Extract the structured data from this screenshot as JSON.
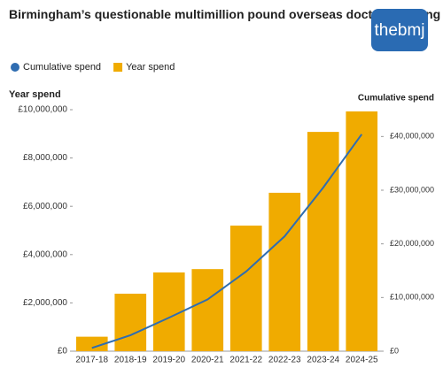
{
  "logo": "thebmj",
  "chart_data": {
    "type": "bar",
    "title": "Birmingham’s questionable multimillion pound overseas doctors training scheme",
    "y_label": "Year spend",
    "y2_label": "Cumulative spend",
    "categories": [
      "2017-18",
      "2018-19",
      "2019-20",
      "2020-21",
      "2021-22",
      "2022-23",
      "2023-24",
      "2024-25"
    ],
    "series": [
      {
        "name": "Cumulative spend",
        "type": "line",
        "color": "#2f6db1",
        "axis": "y2",
        "values": [
          600000,
          2980000,
          6240000,
          9640000,
          14840000,
          21400000,
          30480000,
          40410000
        ]
      },
      {
        "name": "Year spend",
        "type": "bar",
        "color": "#f0ab00",
        "axis": "y",
        "values": [
          600000,
          2380000,
          3260000,
          3400000,
          5200000,
          6560000,
          9080000,
          9930000
        ]
      }
    ],
    "ylim": [
      0,
      10000000
    ],
    "yticks": [
      {
        "value": 0,
        "label": "£0"
      },
      {
        "value": 2000000,
        "label": "£2,000,000"
      },
      {
        "value": 4000000,
        "label": "£4,000,000"
      },
      {
        "value": 6000000,
        "label": "£6,000,000"
      },
      {
        "value": 8000000,
        "label": "£8,000,000"
      },
      {
        "value": 10000000,
        "label": "£10,000,000"
      }
    ],
    "y2lim": [
      0,
      45000000
    ],
    "y2ticks": [
      {
        "value": 0,
        "label": "£0"
      },
      {
        "value": 10000000,
        "label": "£10,000,000"
      },
      {
        "value": 20000000,
        "label": "£20,000,000"
      },
      {
        "value": 30000000,
        "label": "£30,000,000"
      },
      {
        "value": 40000000,
        "label": "£40,000,000"
      }
    ],
    "legend": "top-left"
  }
}
